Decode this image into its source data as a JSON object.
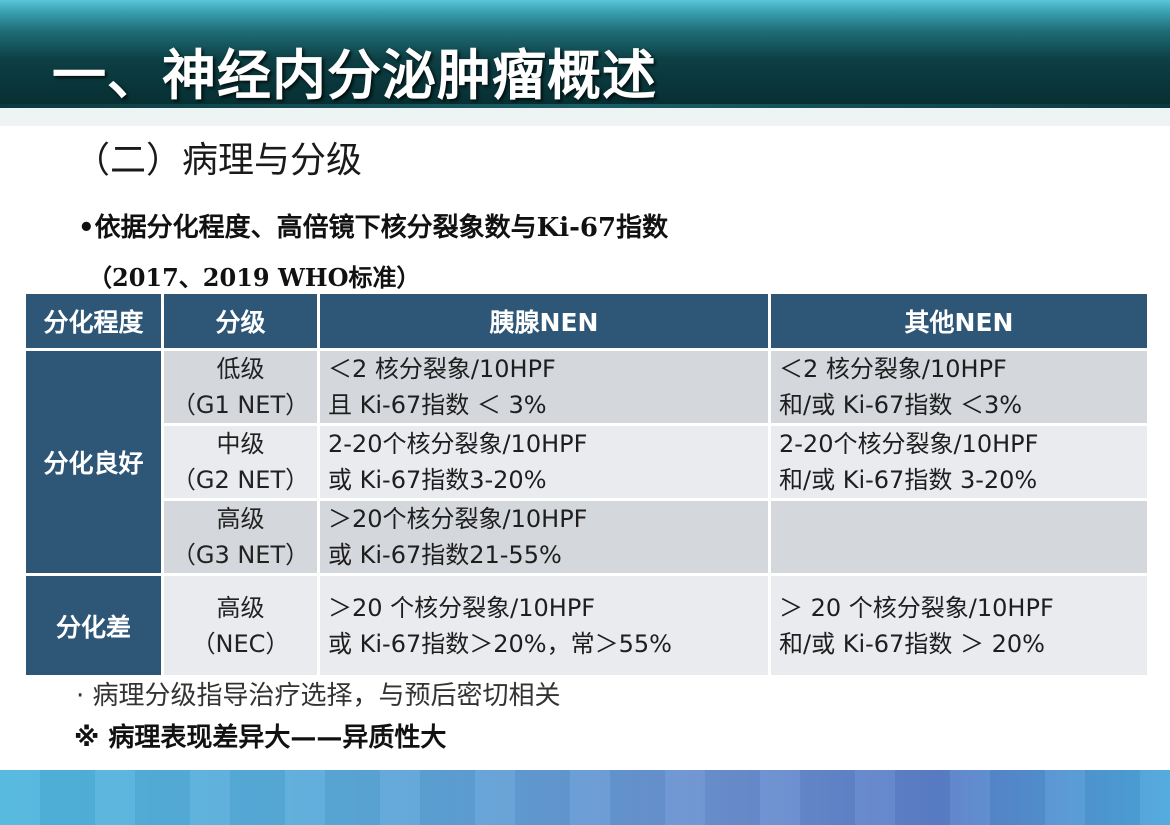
{
  "slide": {
    "title": "一、神经内分泌肿瘤概述",
    "section": "（二）病理与分级",
    "bullet": "•依据分化程度、高倍镜下核分裂象数与Ki-67指数",
    "standard": "（2017、2019  WHO标准）"
  },
  "table": {
    "headers": [
      "分化程度",
      "分级",
      "胰腺NEN",
      "其他NEN"
    ],
    "groups": [
      {
        "label": "分化良好",
        "rows": [
          {
            "grade": [
              "低级",
              "（G1 NET）"
            ],
            "pancreas": [
              "＜2 核分裂象/10HPF",
              "且  Ki-67指数 ＜ 3%"
            ],
            "other": [
              "＜2 核分裂象/10HPF",
              "和/或  Ki-67指数 ＜3%"
            ]
          },
          {
            "grade": [
              "中级",
              "（G2 NET）"
            ],
            "pancreas": [
              "2-20个核分裂象/10HPF",
              "或  Ki-67指数3-20%"
            ],
            "other": [
              "2-20个核分裂象/10HPF",
              "和/或  Ki-67指数 3-20%"
            ]
          },
          {
            "grade": [
              "高级",
              "（G3 NET）"
            ],
            "pancreas": [
              "＞20个核分裂象/10HPF",
              "或  Ki-67指数21-55%"
            ],
            "other": [
              "",
              ""
            ]
          }
        ]
      },
      {
        "label": "分化差",
        "rows": [
          {
            "grade": [
              "高级",
              "（NEC）"
            ],
            "pancreas": [
              "＞20 个核分裂象/10HPF",
              "或  Ki-67指数＞20%，常＞55%"
            ],
            "other": [
              "＞ 20 个核分裂象/10HPF",
              "和/或  Ki-67指数 ＞ 20%"
            ]
          }
        ]
      }
    ]
  },
  "footer": {
    "note1": "· 病理分级指导治疗选择，与预后密切相关",
    "note2": "※ 病理表现差异大——异质性大"
  },
  "colors": {
    "header_fill": "#2e5677",
    "row_shade": "#d4d7dc",
    "row_light": "#e9ebee",
    "top_band": "#0d3f44",
    "bottom_band": "#5a9ed8"
  }
}
